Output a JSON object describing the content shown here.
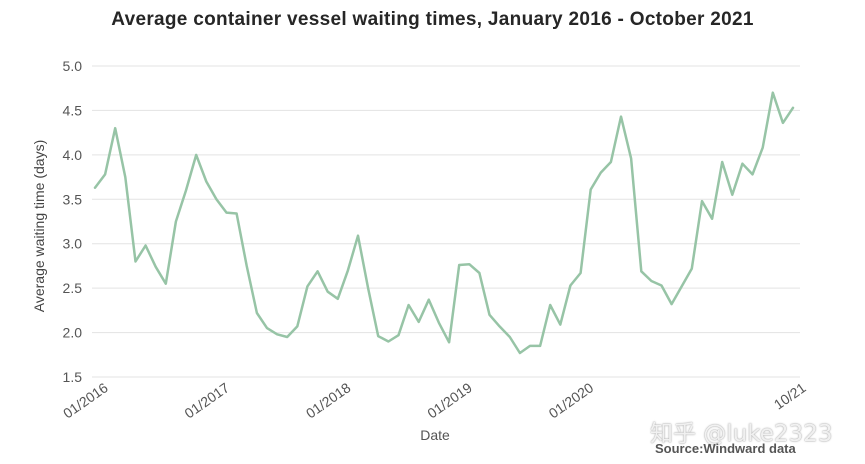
{
  "chart_data": {
    "type": "line",
    "title": "Average container vessel waiting times, January 2016 - October 2021",
    "xlabel": "Date",
    "ylabel": "Average waiting time (days)",
    "ylim": [
      1.5,
      5.0
    ],
    "yticks": [
      "1.5",
      "2.0",
      "2.5",
      "3.0",
      "3.5",
      "4.0",
      "4.5",
      "5.0"
    ],
    "grid": true,
    "xtick_labels": [
      {
        "label": "01/2016",
        "index": 0
      },
      {
        "label": "01/2017",
        "index": 12
      },
      {
        "label": "01/2018",
        "index": 24
      },
      {
        "label": "01/2019",
        "index": 36
      },
      {
        "label": "01/2020",
        "index": 48
      },
      {
        "label": "10/21",
        "index": 69
      }
    ],
    "series": [
      {
        "values": [
          3.63,
          3.78,
          4.3,
          3.75,
          2.8,
          2.98,
          2.74,
          2.55,
          3.25,
          3.6,
          4.0,
          3.7,
          3.5,
          3.35,
          3.34,
          2.75,
          2.22,
          2.05,
          1.98,
          1.95,
          2.07,
          2.52,
          2.69,
          2.46,
          2.38,
          2.7,
          3.09,
          2.5,
          1.96,
          1.9,
          1.97,
          2.31,
          2.12,
          2.37,
          2.11,
          1.89,
          2.76,
          2.77,
          2.67,
          2.2,
          2.07,
          1.95,
          1.77,
          1.85,
          1.85,
          2.31,
          2.09,
          2.53,
          2.67,
          3.61,
          3.8,
          3.92,
          4.43,
          3.96,
          2.69,
          2.58,
          2.53,
          2.32,
          2.52,
          2.72,
          3.48,
          3.28,
          3.92,
          3.55,
          3.9,
          3.78,
          4.08,
          4.7,
          4.36,
          4.53
        ]
      }
    ],
    "line_color": "#97c4a6"
  },
  "watermark": "知乎 @luke2323",
  "source": "Source:Windward data"
}
